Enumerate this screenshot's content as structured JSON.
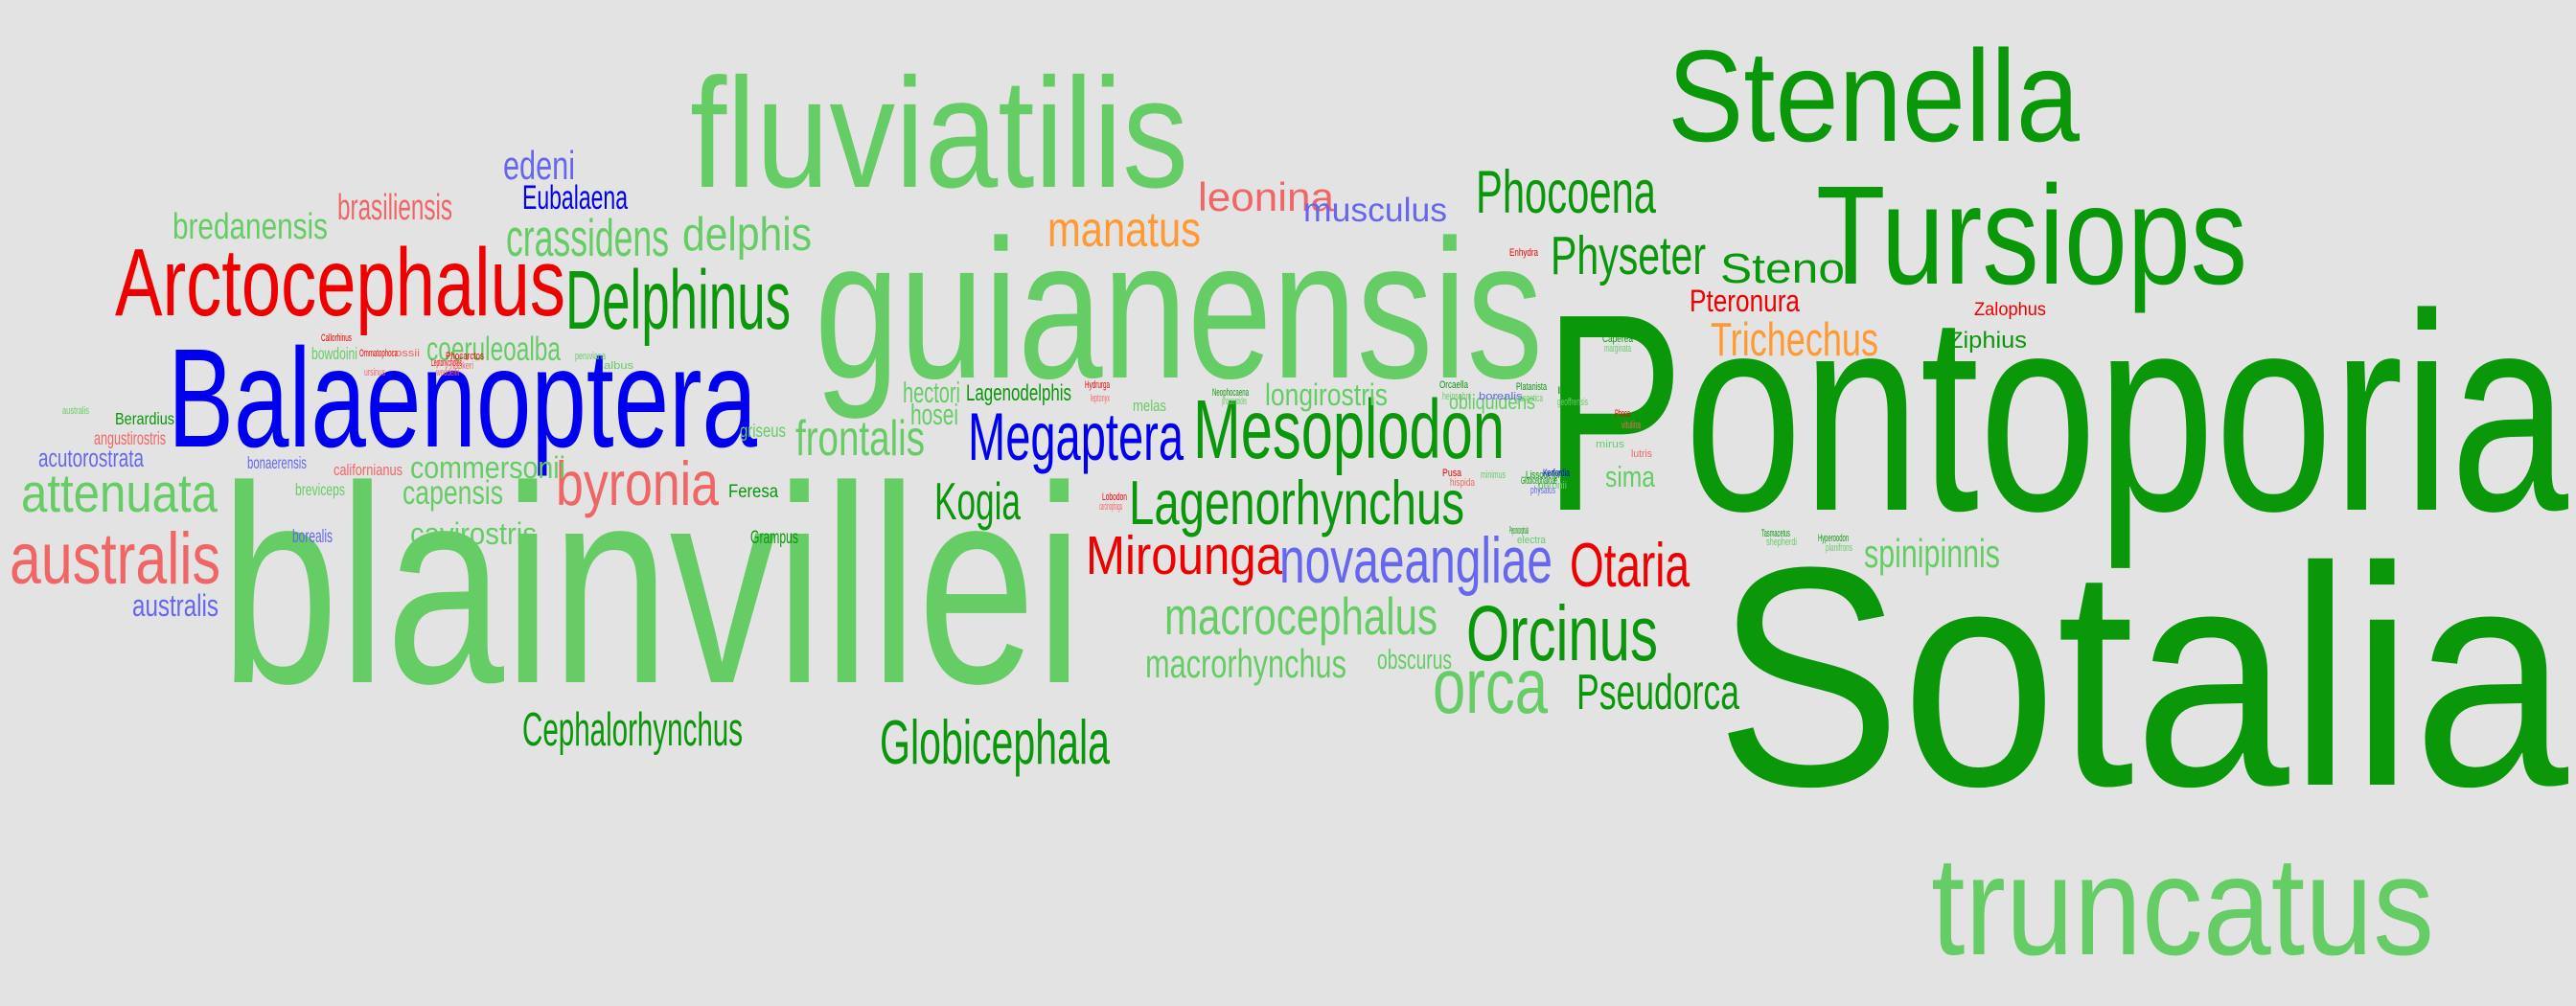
{
  "palette": {
    "dark_green": "#0a970a",
    "light_green": "#66cc66",
    "red": "#ee0000",
    "salmon": "#f06666",
    "blue": "#0000ee",
    "periwinkle": "#6666ee",
    "orange": "#ff9933",
    "background": "#e3e3e3"
  },
  "words": [
    {
      "text": "Sotalia",
      "color": "dark_green"
    },
    {
      "text": "Pontoporia",
      "color": "dark_green"
    },
    {
      "text": "blainvillei",
      "color": "light_green"
    },
    {
      "text": "guianensis",
      "color": "light_green"
    },
    {
      "text": "fluviatilis",
      "color": "light_green"
    },
    {
      "text": "Tursiops",
      "color": "dark_green"
    },
    {
      "text": "Stenella",
      "color": "dark_green"
    },
    {
      "text": "truncatus",
      "color": "light_green"
    },
    {
      "text": "Balaenoptera",
      "color": "blue"
    },
    {
      "text": "Arctocephalus",
      "color": "red"
    },
    {
      "text": "Mesoplodon",
      "color": "dark_green"
    },
    {
      "text": "Delphinus",
      "color": "dark_green"
    },
    {
      "text": "Lagenorhynchus",
      "color": "dark_green"
    },
    {
      "text": "Megaptera",
      "color": "blue"
    },
    {
      "text": "novaeangliae",
      "color": "periwinkle"
    },
    {
      "text": "Orcinus",
      "color": "dark_green"
    },
    {
      "text": "australis",
      "color": "salmon"
    },
    {
      "text": "attenuata",
      "color": "light_green"
    },
    {
      "text": "byronia",
      "color": "salmon"
    },
    {
      "text": "orca",
      "color": "light_green"
    },
    {
      "text": "Phocoena",
      "color": "dark_green"
    },
    {
      "text": "Physeter",
      "color": "dark_green"
    },
    {
      "text": "macrocephalus",
      "color": "light_green"
    },
    {
      "text": "Mirounga",
      "color": "red"
    },
    {
      "text": "Otaria",
      "color": "red"
    },
    {
      "text": "Globicephala",
      "color": "dark_green"
    },
    {
      "text": "Cephalorhynchus",
      "color": "dark_green"
    },
    {
      "text": "Pseudorca",
      "color": "dark_green"
    },
    {
      "text": "frontalis",
      "color": "light_green"
    },
    {
      "text": "crassidens",
      "color": "light_green"
    },
    {
      "text": "Trichechus",
      "color": "orange"
    },
    {
      "text": "manatus",
      "color": "orange"
    },
    {
      "text": "delphis",
      "color": "light_green"
    },
    {
      "text": "bredanensis",
      "color": "light_green"
    },
    {
      "text": "leonina",
      "color": "salmon"
    },
    {
      "text": "Kogia",
      "color": "dark_green"
    },
    {
      "text": "Steno",
      "color": "dark_green"
    },
    {
      "text": "spinipinnis",
      "color": "light_green"
    },
    {
      "text": "macrorhynchus",
      "color": "light_green"
    },
    {
      "text": "edeni",
      "color": "periwinkle"
    },
    {
      "text": "brasiliensis",
      "color": "salmon"
    },
    {
      "text": "coeruleoalba",
      "color": "light_green"
    },
    {
      "text": "musculus",
      "color": "periwinkle"
    },
    {
      "text": "Eubalaena",
      "color": "blue"
    },
    {
      "text": "Pteronura",
      "color": "red"
    },
    {
      "text": "capensis",
      "color": "light_green"
    },
    {
      "text": "commersonii",
      "color": "light_green"
    },
    {
      "text": "hosei",
      "color": "light_green"
    },
    {
      "text": "hectori",
      "color": "light_green"
    },
    {
      "text": "longirostris",
      "color": "light_green"
    },
    {
      "text": "cavirostris",
      "color": "light_green"
    },
    {
      "text": "acutorostrata",
      "color": "periwinkle"
    },
    {
      "text": "australis",
      "color": "periwinkle"
    },
    {
      "text": "sima",
      "color": "light_green"
    },
    {
      "text": "obscurus",
      "color": "light_green"
    },
    {
      "text": "Lagenodelphis",
      "color": "dark_green"
    },
    {
      "text": "obliquidens",
      "color": "light_green"
    },
    {
      "text": "Ziphius",
      "color": "dark_green"
    },
    {
      "text": "griseus",
      "color": "light_green"
    },
    {
      "text": "Zalophus",
      "color": "red"
    },
    {
      "text": "angustirostris",
      "color": "salmon"
    },
    {
      "text": "Berardius",
      "color": "dark_green"
    },
    {
      "text": "bonaerensis",
      "color": "periwinkle"
    },
    {
      "text": "californianus",
      "color": "salmon"
    },
    {
      "text": "borealis",
      "color": "periwinkle"
    },
    {
      "text": "breviceps",
      "color": "light_green"
    },
    {
      "text": "bowdoini",
      "color": "light_green"
    },
    {
      "text": "Feresa",
      "color": "dark_green"
    },
    {
      "text": "Grampus",
      "color": "dark_green"
    },
    {
      "text": "melas",
      "color": "light_green"
    },
    {
      "text": "Callorhinus",
      "color": "red"
    },
    {
      "text": "ursinus",
      "color": "salmon"
    },
    {
      "text": "Hydrurga",
      "color": "red"
    },
    {
      "text": "leptonyx",
      "color": "salmon"
    },
    {
      "text": "Lobodon",
      "color": "red"
    },
    {
      "text": "carcinophaga",
      "color": "salmon"
    },
    {
      "text": "Ommatophoca",
      "color": "red"
    },
    {
      "text": "rossii",
      "color": "salmon"
    },
    {
      "text": "Leptonychotes",
      "color": "red"
    },
    {
      "text": "weddellii",
      "color": "salmon"
    },
    {
      "text": "Phocarctos",
      "color": "red"
    },
    {
      "text": "hookeri",
      "color": "salmon"
    },
    {
      "text": "Neophocaena",
      "color": "dark_green"
    },
    {
      "text": "phocaenoides",
      "color": "light_green"
    },
    {
      "text": "Orcaella",
      "color": "dark_green"
    },
    {
      "text": "heinsohni",
      "color": "light_green"
    },
    {
      "text": "Platanista",
      "color": "dark_green"
    },
    {
      "text": "gangetica",
      "color": "light_green"
    },
    {
      "text": "Inia",
      "color": "dark_green"
    },
    {
      "text": "geoffrensis",
      "color": "light_green"
    },
    {
      "text": "Phoca",
      "color": "red"
    },
    {
      "text": "vitulina",
      "color": "salmon"
    },
    {
      "text": "Pusa",
      "color": "red"
    },
    {
      "text": "hispida",
      "color": "salmon"
    },
    {
      "text": "Peponocephala",
      "color": "dark_green"
    },
    {
      "text": "electra",
      "color": "light_green"
    },
    {
      "text": "Lissodelphis",
      "color": "dark_green"
    },
    {
      "text": "peronii",
      "color": "light_green"
    },
    {
      "text": "Tasmacetus",
      "color": "dark_green"
    },
    {
      "text": "shepherdi",
      "color": "light_green"
    },
    {
      "text": "Hyperoodon",
      "color": "dark_green"
    },
    {
      "text": "planifrons",
      "color": "light_green"
    },
    {
      "text": "Caperea",
      "color": "dark_green"
    },
    {
      "text": "marginata",
      "color": "light_green"
    },
    {
      "text": "Globicephalinae",
      "color": "dark_green"
    },
    {
      "text": "physalus",
      "color": "periwinkle"
    },
    {
      "text": "borealis",
      "color": "periwinkle"
    },
    {
      "text": "Kerfordia",
      "color": "blue"
    },
    {
      "text": "minimus",
      "color": "light_green"
    },
    {
      "text": "albus",
      "color": "light_green"
    },
    {
      "text": "peruviana",
      "color": "light_green"
    },
    {
      "text": "australis",
      "color": "light_green"
    },
    {
      "text": "mirus",
      "color": "light_green"
    },
    {
      "text": "Enhydra",
      "color": "red"
    },
    {
      "text": "lutris",
      "color": "salmon"
    }
  ]
}
